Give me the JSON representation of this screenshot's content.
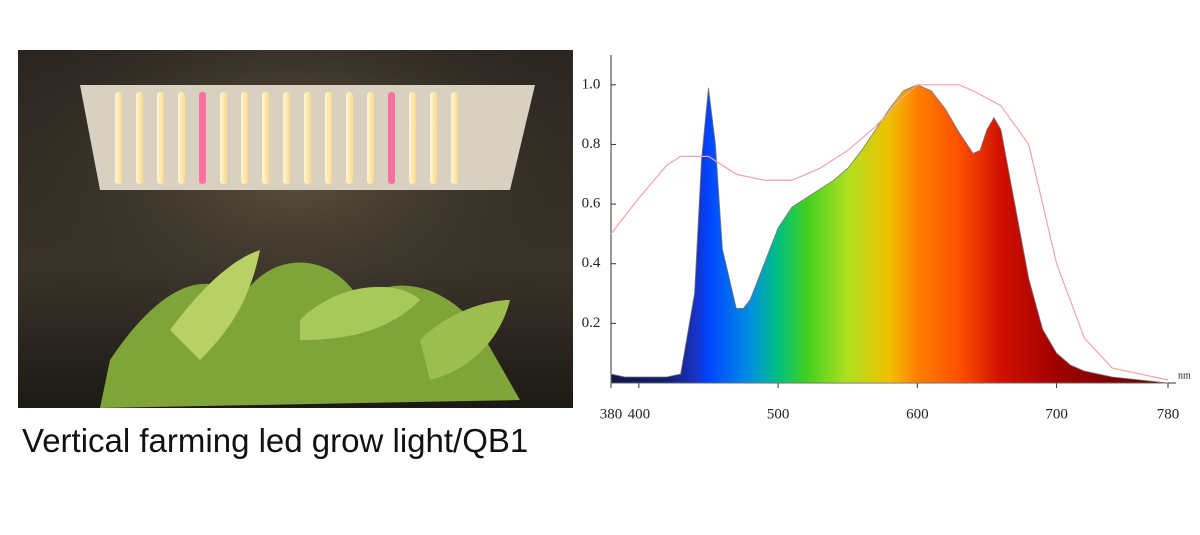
{
  "caption": "Vertical farming led grow light/QB1",
  "chart_data": {
    "type": "area",
    "x_unit": "nm",
    "xlim": [
      380,
      780
    ],
    "xticks": [
      380,
      400,
      500,
      600,
      700,
      780
    ],
    "ylim": [
      0,
      1.1
    ],
    "yticks": [
      0.2,
      0.4,
      0.6,
      0.8,
      {
        "value": 1,
        "label": "1.0"
      }
    ],
    "grid": false,
    "series": [
      {
        "x": [
          380,
          390,
          400,
          410,
          420,
          430,
          440,
          445,
          450,
          455,
          460,
          470,
          475,
          480,
          490,
          500,
          510,
          520,
          530,
          540,
          550,
          560,
          570,
          580,
          590,
          600,
          610,
          620,
          630,
          640,
          645,
          650,
          655,
          660,
          670,
          680,
          690,
          700,
          710,
          720,
          730,
          740,
          760,
          780
        ],
        "values": [
          0.03,
          0.02,
          0.02,
          0.02,
          0.02,
          0.03,
          0.3,
          0.75,
          0.99,
          0.8,
          0.45,
          0.25,
          0.25,
          0.28,
          0.4,
          0.52,
          0.59,
          0.62,
          0.65,
          0.68,
          0.72,
          0.78,
          0.85,
          0.92,
          0.98,
          1.0,
          0.98,
          0.92,
          0.84,
          0.77,
          0.78,
          0.85,
          0.89,
          0.85,
          0.6,
          0.35,
          0.18,
          0.1,
          0.06,
          0.04,
          0.03,
          0.02,
          0.01,
          0.0
        ],
        "fill": "spectrum"
      },
      {
        "x": [
          380,
          400,
          420,
          430,
          450,
          470,
          490,
          510,
          530,
          550,
          570,
          590,
          600,
          630,
          640,
          660,
          680,
          700,
          720,
          740,
          780
        ],
        "values": [
          0.5,
          0.62,
          0.73,
          0.76,
          0.76,
          0.7,
          0.68,
          0.68,
          0.72,
          0.78,
          0.86,
          0.96,
          1.0,
          1.0,
          0.98,
          0.93,
          0.8,
          0.4,
          0.15,
          0.05,
          0.01
        ],
        "color": "#f2a4ac"
      }
    ]
  }
}
